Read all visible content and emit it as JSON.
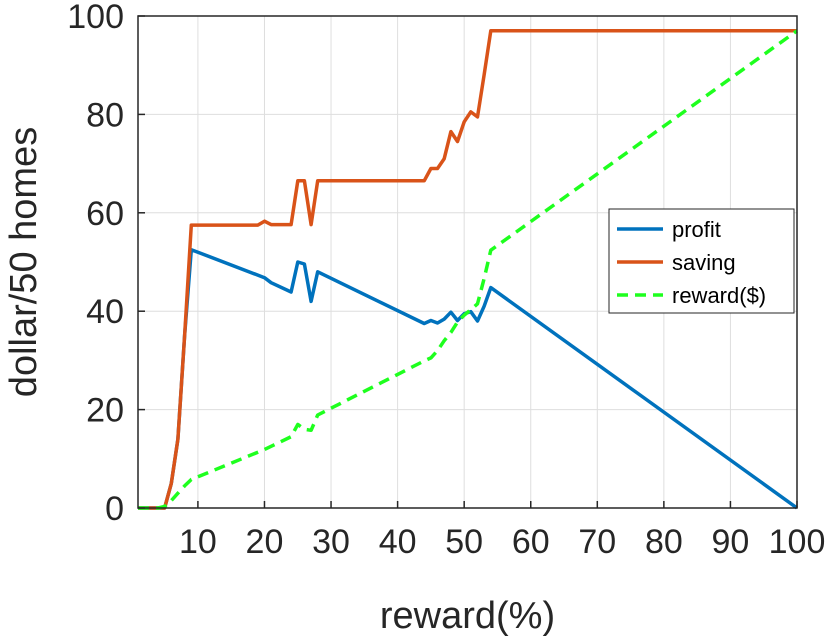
{
  "chart_data": {
    "type": "line",
    "xlabel": "reward(%)",
    "ylabel": "dollar/50 homes",
    "xlim": [
      1,
      100
    ],
    "ylim": [
      0,
      100
    ],
    "xticks": [
      10,
      20,
      30,
      40,
      50,
      60,
      70,
      80,
      90,
      100
    ],
    "yticks": [
      0,
      20,
      40,
      60,
      80,
      100
    ],
    "grid": true,
    "legend_position": "right",
    "series": [
      {
        "name": "profit",
        "color": "#0072BD",
        "style": "solid",
        "points": [
          [
            1,
            0
          ],
          [
            3,
            0
          ],
          [
            5,
            0
          ],
          [
            6,
            5
          ],
          [
            7,
            14
          ],
          [
            8,
            35
          ],
          [
            9,
            52.5
          ],
          [
            20,
            46.8
          ],
          [
            21,
            45.8
          ],
          [
            24,
            43.9
          ],
          [
            25,
            50
          ],
          [
            26,
            49.6
          ],
          [
            27,
            42
          ],
          [
            28,
            48
          ],
          [
            44,
            37.5
          ],
          [
            45,
            38.1
          ],
          [
            46,
            37.6
          ],
          [
            47,
            38.4
          ],
          [
            48,
            39.8
          ],
          [
            49,
            38.1
          ],
          [
            50,
            39.5
          ],
          [
            51,
            39.9
          ],
          [
            52,
            38
          ],
          [
            53,
            41
          ],
          [
            54,
            44.8
          ],
          [
            100,
            0
          ]
        ]
      },
      {
        "name": "saving",
        "color": "#D95319",
        "style": "solid",
        "points": [
          [
            1,
            0
          ],
          [
            3,
            0
          ],
          [
            5,
            0
          ],
          [
            6,
            5
          ],
          [
            7,
            14
          ],
          [
            8,
            35
          ],
          [
            9,
            57.5
          ],
          [
            19,
            57.5
          ],
          [
            20,
            58.3
          ],
          [
            21,
            57.6
          ],
          [
            24,
            57.6
          ],
          [
            25,
            66.5
          ],
          [
            26,
            66.5
          ],
          [
            27,
            57.6
          ],
          [
            28,
            66.5
          ],
          [
            44,
            66.5
          ],
          [
            45,
            69
          ],
          [
            46,
            69
          ],
          [
            47,
            71
          ],
          [
            48,
            76.5
          ],
          [
            49,
            74.5
          ],
          [
            50,
            78.5
          ],
          [
            51,
            80.5
          ],
          [
            52,
            79.5
          ],
          [
            53,
            88
          ],
          [
            54,
            97
          ],
          [
            100,
            97
          ]
        ]
      },
      {
        "name": "reward($)",
        "color": "#1EFF1E",
        "style": "dashed",
        "points": [
          [
            1,
            0
          ],
          [
            4,
            0
          ],
          [
            5,
            0.3
          ],
          [
            6,
            1.5
          ],
          [
            7,
            3
          ],
          [
            8,
            4.5
          ],
          [
            9,
            5.8
          ],
          [
            20,
            11.9
          ],
          [
            24,
            14.5
          ],
          [
            25,
            17
          ],
          [
            26,
            16
          ],
          [
            27,
            15.8
          ],
          [
            28,
            18.9
          ],
          [
            44,
            29.9
          ],
          [
            45,
            30.5
          ],
          [
            46,
            32
          ],
          [
            47,
            34
          ],
          [
            48,
            35.7
          ],
          [
            49,
            37.8
          ],
          [
            50,
            39.2
          ],
          [
            51,
            40.3
          ],
          [
            52,
            41.5
          ],
          [
            53,
            46.6
          ],
          [
            54,
            52.4
          ],
          [
            100,
            97
          ]
        ]
      }
    ]
  }
}
